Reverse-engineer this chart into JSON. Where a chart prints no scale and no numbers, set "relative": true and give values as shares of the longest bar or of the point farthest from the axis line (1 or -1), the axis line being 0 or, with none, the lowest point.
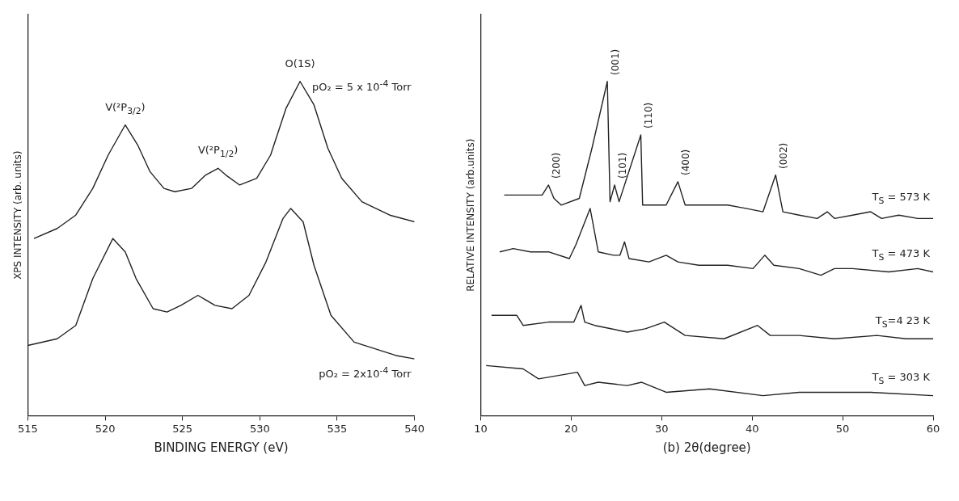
{
  "chart_data": [
    {
      "type": "line",
      "xlabel": "BINDING ENERGY (eV)",
      "ylabel": "XPS INTENSITY (arb. units)",
      "relative": true,
      "xlim": [
        515,
        540
      ],
      "xticks": [
        515,
        520,
        525,
        530,
        535,
        540
      ],
      "tick_labels": "x",
      "grid": false,
      "legend": false,
      "series": [
        {
          "name": "pO₂ = 5 x 10$^{-4}$ Torr",
          "color": "#222222",
          "x": [
            515.4,
            516.9,
            518.1,
            519.2,
            520.2,
            521.3,
            522.1,
            522.9,
            523.8,
            524.5,
            525.6,
            526.5,
            527.3,
            527.8,
            528.7,
            529.8,
            530.7,
            531.7,
            532.6,
            533.5,
            534.4,
            535.3,
            536.6,
            538.4,
            540
          ],
          "values": [
            0.53,
            0.56,
            0.6,
            0.68,
            0.78,
            0.87,
            0.81,
            0.73,
            0.68,
            0.67,
            0.68,
            0.72,
            0.74,
            0.72,
            0.69,
            0.71,
            0.78,
            0.92,
            1.0,
            0.93,
            0.8,
            0.71,
            0.64,
            0.6,
            0.58
          ]
        },
        {
          "name": "pO₂ = 2x10$^{-4}$ Torr",
          "color": "#222222",
          "x": [
            515,
            516.9,
            518.1,
            519.2,
            520.5,
            521.3,
            522.0,
            523.1,
            524.0,
            524.9,
            526.0,
            527.1,
            528.2,
            529.3,
            530.4,
            531.5,
            532.0,
            532.8,
            533.5,
            534.6,
            536.1,
            538.8,
            540
          ],
          "values": [
            0.21,
            0.23,
            0.27,
            0.41,
            0.53,
            0.49,
            0.41,
            0.32,
            0.31,
            0.33,
            0.36,
            0.33,
            0.32,
            0.36,
            0.46,
            0.59,
            0.62,
            0.58,
            0.45,
            0.3,
            0.22,
            0.18,
            0.17
          ]
        }
      ],
      "annotations": [
        {
          "text": "O(1S)",
          "x": 532.6,
          "y": 1.0
        },
        {
          "text": "V(²P$_{3/2}$)",
          "x": 521.3,
          "y": 0.87
        },
        {
          "text": "V(²P$_{1/2}$)",
          "x": 527.3,
          "y": 0.74
        }
      ]
    },
    {
      "type": "line",
      "xlabel": "(b) 2θ(degree)",
      "ylabel": "RELATIVE INTENSITY (arb.units)",
      "relative": true,
      "xlim": [
        10,
        60
      ],
      "xticks": [
        10,
        20,
        30,
        40,
        50,
        60
      ],
      "tick_labels": "x",
      "grid": false,
      "legend": false,
      "series": [
        {
          "name": "T$_{S}$ = 573 K",
          "color": "#222222",
          "x": [
            12.6,
            15.1,
            16.8,
            17.5,
            18.1,
            18.9,
            20.9,
            22.3,
            24.0,
            24.3,
            24.8,
            25.3,
            27.7,
            27.9,
            29.4,
            30.5,
            31.8,
            32.6,
            35.3,
            37.3,
            39.3,
            41.2,
            42.6,
            43.4,
            45.2,
            47.2,
            48.3,
            49.1,
            51.1,
            53.1,
            54.3,
            56.2,
            58.3,
            60
          ],
          "values": [
            0.66,
            0.66,
            0.66,
            0.69,
            0.65,
            0.63,
            0.65,
            0.8,
            1.0,
            0.64,
            0.69,
            0.64,
            0.84,
            0.63,
            0.63,
            0.63,
            0.7,
            0.63,
            0.63,
            0.63,
            0.62,
            0.61,
            0.72,
            0.61,
            0.6,
            0.59,
            0.61,
            0.59,
            0.6,
            0.61,
            0.59,
            0.6,
            0.59,
            0.59
          ]
        },
        {
          "name": "T$_{S}$ = 473 K",
          "color": "#222222",
          "x": [
            12.1,
            13.6,
            15.5,
            17.5,
            19.8,
            20.5,
            22.1,
            23.0,
            24.7,
            25.4,
            25.9,
            26.4,
            28.6,
            30.5,
            31.8,
            34.1,
            37.3,
            40.1,
            41.4,
            42.4,
            45.2,
            47.6,
            49.1,
            51.1,
            55.1,
            58.3,
            60
          ],
          "values": [
            0.49,
            0.5,
            0.49,
            0.49,
            0.47,
            0.51,
            0.62,
            0.49,
            0.48,
            0.48,
            0.52,
            0.47,
            0.46,
            0.48,
            0.46,
            0.45,
            0.45,
            0.44,
            0.48,
            0.45,
            0.44,
            0.42,
            0.44,
            0.44,
            0.43,
            0.44,
            0.43
          ]
        },
        {
          "name": "T$_{S}$=4 23 K",
          "color": "#222222",
          "x": [
            11.2,
            14.0,
            14.7,
            17.5,
            20.3,
            21.1,
            21.5,
            22.6,
            26.2,
            28.2,
            30.3,
            32.6,
            36.9,
            40.6,
            42.0,
            45.2,
            49.1,
            53.8,
            57.0,
            60
          ],
          "values": [
            0.3,
            0.3,
            0.27,
            0.28,
            0.28,
            0.33,
            0.28,
            0.27,
            0.25,
            0.26,
            0.28,
            0.24,
            0.23,
            0.27,
            0.24,
            0.24,
            0.23,
            0.24,
            0.23,
            0.23
          ]
        },
        {
          "name": "T$_{S}$ = 303 K",
          "color": "#222222",
          "x": [
            10.6,
            14.7,
            16.4,
            20.7,
            21.5,
            23.0,
            26.2,
            27.8,
            30.5,
            35.3,
            41.2,
            45.2,
            53.1,
            60
          ],
          "values": [
            0.15,
            0.14,
            0.11,
            0.13,
            0.09,
            0.1,
            0.09,
            0.1,
            0.07,
            0.08,
            0.06,
            0.07,
            0.07,
            0.06
          ]
        }
      ],
      "annotations": [
        {
          "text": "(200)",
          "x": 17.5,
          "y": 0.69
        },
        {
          "text": "(001)",
          "x": 24.0,
          "y": 1.0
        },
        {
          "text": "(101)",
          "x": 24.8,
          "y": 0.69
        },
        {
          "text": "(110)",
          "x": 27.7,
          "y": 0.84
        },
        {
          "text": "(400)",
          "x": 31.8,
          "y": 0.7
        },
        {
          "text": "(002)",
          "x": 42.6,
          "y": 0.72
        }
      ]
    }
  ]
}
